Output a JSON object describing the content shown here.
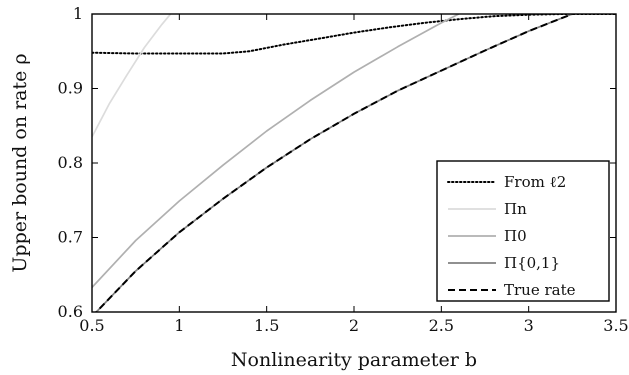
{
  "chart_data": {
    "type": "line",
    "xlabel": "Nonlinearity parameter b",
    "ylabel": "Upper bound on rate ρ",
    "xlim": [
      0.5,
      3.5
    ],
    "ylim": [
      0.6,
      1.0
    ],
    "xticks": [
      "0.5",
      "1",
      "1.5",
      "2",
      "2.5",
      "3",
      "3.5"
    ],
    "yticks": [
      "0.6",
      "0.7",
      "0.8",
      "0.9",
      "1"
    ],
    "grid": false,
    "legend_position": "bottom-right",
    "series": [
      {
        "name": "From ℓ2",
        "color": "#000000",
        "dash": "dotted",
        "x": [
          0.5,
          0.75,
          1.0,
          1.25,
          1.4,
          1.6,
          1.8,
          2.0,
          2.2,
          2.4,
          2.6,
          2.8,
          3.0,
          3.2,
          3.5
        ],
        "y": [
          0.948,
          0.947,
          0.947,
          0.947,
          0.95,
          0.959,
          0.967,
          0.975,
          0.982,
          0.988,
          0.993,
          0.997,
          0.999,
          1.0,
          1.0
        ]
      },
      {
        "name": "Πn",
        "color": "#dcdcdc",
        "dash": "solid",
        "x": [
          0.5,
          0.6,
          0.7,
          0.8,
          0.9,
          0.95
        ],
        "y": [
          0.835,
          0.88,
          0.918,
          0.955,
          0.986,
          1.0
        ]
      },
      {
        "name": "Π0",
        "color": "#b0b0b0",
        "dash": "solid",
        "x": [
          0.5,
          0.75,
          1.0,
          1.25,
          1.5,
          1.75,
          2.0,
          2.25,
          2.5,
          2.6
        ],
        "y": [
          0.633,
          0.696,
          0.749,
          0.797,
          0.843,
          0.884,
          0.922,
          0.956,
          0.988,
          1.0
        ]
      },
      {
        "name": "Π{0,1}",
        "color": "#808080",
        "dash": "solid",
        "x": [
          0.5,
          0.75,
          1.0,
          1.25,
          1.5,
          1.75,
          2.0,
          2.25,
          2.5,
          2.75,
          3.0,
          3.25
        ],
        "y": [
          0.594,
          0.655,
          0.707,
          0.752,
          0.794,
          0.832,
          0.866,
          0.897,
          0.924,
          0.951,
          0.977,
          1.0
        ]
      },
      {
        "name": "True rate",
        "color": "#000000",
        "dash": "dashed",
        "x": [
          0.5,
          0.75,
          1.0,
          1.25,
          1.5,
          1.75,
          2.0,
          2.25,
          2.5,
          2.75,
          3.0,
          3.25
        ],
        "y": [
          0.594,
          0.655,
          0.707,
          0.752,
          0.794,
          0.832,
          0.866,
          0.897,
          0.924,
          0.951,
          0.977,
          1.0
        ]
      }
    ]
  }
}
